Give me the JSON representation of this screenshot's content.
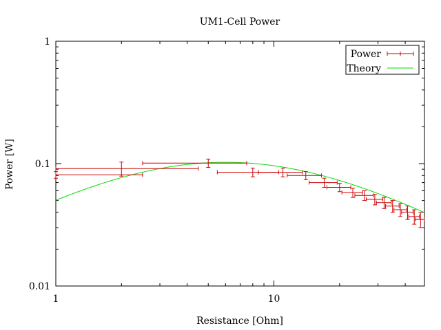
{
  "chart_data": {
    "type": "scatter",
    "title": "UM1-Cell Power",
    "xlabel": "Resistance [Ohm]",
    "ylabel": "Power [W]",
    "xscale": "log",
    "yscale": "log",
    "xlim": [
      1,
      49
    ],
    "ylim": [
      0.01,
      1
    ],
    "x_tick_labels": [
      {
        "value": 1,
        "label": "1"
      },
      {
        "value": 10,
        "label": "10"
      }
    ],
    "y_tick_labels": [
      {
        "value": 0.01,
        "label": "0.01"
      },
      {
        "value": 0.1,
        "label": "0.1"
      },
      {
        "value": 1,
        "label": "1"
      }
    ],
    "legend": {
      "position": "top-right",
      "entries": [
        {
          "label": "Power",
          "style": "errorbars",
          "color": "#cc0000"
        },
        {
          "label": "Theory",
          "style": "line",
          "color": "#00dd00"
        }
      ]
    },
    "series": [
      {
        "name": "Power",
        "color": "#cc0000",
        "points": [
          {
            "x": 1.0,
            "y": 0.081,
            "xerr_low": 1.0,
            "xerr_high": 2.5,
            "yerr": 0.005
          },
          {
            "x": 2.0,
            "y": 0.091,
            "xerr_low": 1.0,
            "xerr_high": 4.5,
            "yerr": 0.012
          },
          {
            "x": 5.0,
            "y": 0.101,
            "xerr_low": 2.5,
            "xerr_high": 7.5,
            "yerr": 0.008
          },
          {
            "x": 8.0,
            "y": 0.085,
            "xerr_low": 5.5,
            "xerr_high": 10.5,
            "yerr": 0.007
          },
          {
            "x": 11.0,
            "y": 0.085,
            "xerr_low": 8.5,
            "xerr_high": 13.5,
            "yerr": 0.007
          },
          {
            "x": 14.0,
            "y": 0.08,
            "xerr_low": 11.5,
            "xerr_high": 16.5,
            "yerr": 0.006
          },
          {
            "x": 17.0,
            "y": 0.07,
            "xerr_low": 14.5,
            "xerr_high": 19.5,
            "yerr": 0.006
          },
          {
            "x": 20.0,
            "y": 0.064,
            "xerr_low": 17.5,
            "xerr_high": 22.5,
            "yerr": 0.005
          },
          {
            "x": 23.0,
            "y": 0.058,
            "xerr_low": 20.5,
            "xerr_high": 25.5,
            "yerr": 0.005
          },
          {
            "x": 26.0,
            "y": 0.055,
            "xerr_low": 23.5,
            "xerr_high": 28.5,
            "yerr": 0.005
          },
          {
            "x": 29.0,
            "y": 0.051,
            "xerr_low": 26.5,
            "xerr_high": 31.5,
            "yerr": 0.005
          },
          {
            "x": 32.0,
            "y": 0.048,
            "xerr_low": 29.5,
            "xerr_high": 34.5,
            "yerr": 0.005
          },
          {
            "x": 35.0,
            "y": 0.045,
            "xerr_low": 32.5,
            "xerr_high": 37.5,
            "yerr": 0.005
          },
          {
            "x": 38.0,
            "y": 0.042,
            "xerr_low": 35.5,
            "xerr_high": 40.5,
            "yerr": 0.005
          },
          {
            "x": 41.0,
            "y": 0.04,
            "xerr_low": 38.5,
            "xerr_high": 43.5,
            "yerr": 0.005
          },
          {
            "x": 44.0,
            "y": 0.037,
            "xerr_low": 41.5,
            "xerr_high": 46.5,
            "yerr": 0.005
          },
          {
            "x": 47.0,
            "y": 0.035,
            "xerr_low": 44.5,
            "xerr_high": 49.0,
            "yerr": 0.005
          }
        ]
      },
      {
        "name": "Theory",
        "color": "#00dd00",
        "model": {
          "P_max": 0.1025,
          "R_int": 6.0
        }
      }
    ]
  }
}
